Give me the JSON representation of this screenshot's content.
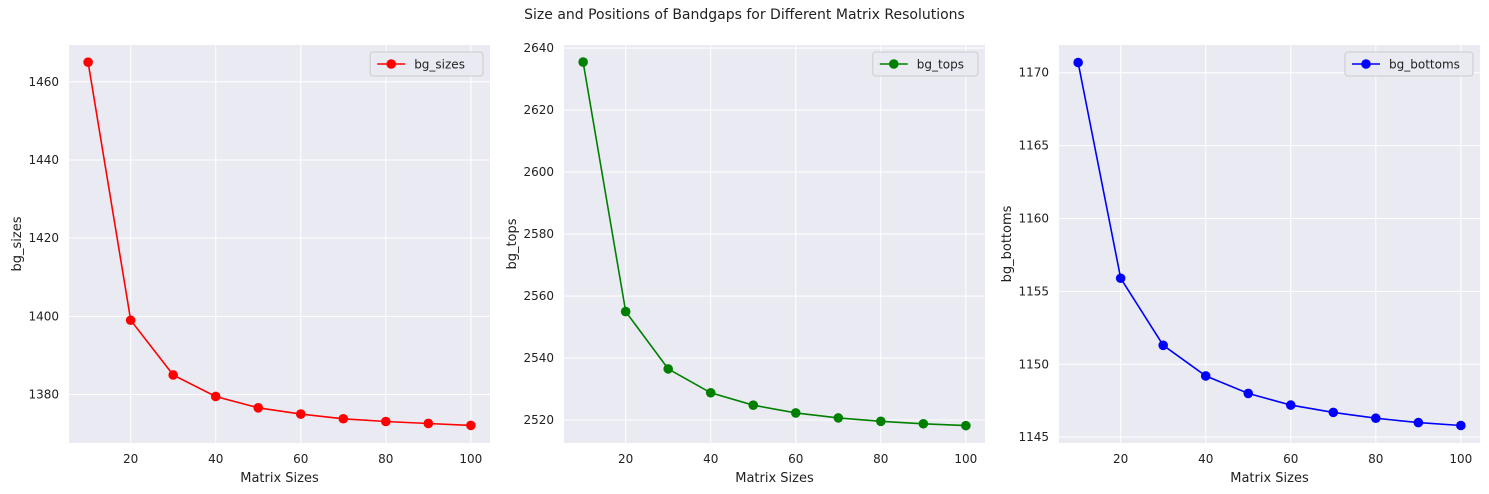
{
  "title": "Size and Positions of Bandgaps for Different Matrix Resolutions",
  "chart_data": [
    {
      "type": "line",
      "title": "",
      "xlabel": "Matrix Sizes",
      "ylabel": "bg_sizes",
      "x": [
        10,
        20,
        30,
        40,
        50,
        60,
        70,
        80,
        90,
        100
      ],
      "xticks": [
        20,
        40,
        60,
        80,
        100
      ],
      "yticks": [
        1380,
        1400,
        1420,
        1440,
        1460
      ],
      "xlim": [
        5.5,
        104.5
      ],
      "ylim": [
        1367.6,
        1469.4
      ],
      "grid": true,
      "legend": "top-right",
      "series": [
        {
          "name": "bg_sizes",
          "color": "#ff0000",
          "marker": "circle",
          "values": [
            1465,
            1399,
            1385,
            1379.5,
            1376.6,
            1375,
            1373.8,
            1373.1,
            1372.6,
            1372.1
          ]
        }
      ]
    },
    {
      "type": "line",
      "title": "",
      "xlabel": "Matrix Sizes",
      "ylabel": "bg_tops",
      "x": [
        10,
        20,
        30,
        40,
        50,
        60,
        70,
        80,
        90,
        100
      ],
      "xticks": [
        20,
        40,
        60,
        80,
        100
      ],
      "yticks": [
        2520,
        2540,
        2560,
        2580,
        2600,
        2620,
        2640
      ],
      "xlim": [
        5.5,
        104.5
      ],
      "ylim": [
        2512.6,
        2641.0
      ],
      "grid": true,
      "legend": "top-right",
      "series": [
        {
          "name": "bg_tops",
          "color": "#008000",
          "marker": "circle",
          "values": [
            2635.5,
            2555,
            2536.5,
            2528.8,
            2524.8,
            2522.3,
            2520.7,
            2519.6,
            2518.8,
            2518.2
          ]
        }
      ]
    },
    {
      "type": "line",
      "title": "",
      "xlabel": "Matrix Sizes",
      "ylabel": "bg_bottoms",
      "x": [
        10,
        20,
        30,
        40,
        50,
        60,
        70,
        80,
        90,
        100
      ],
      "xticks": [
        20,
        40,
        60,
        80,
        100
      ],
      "yticks": [
        1145,
        1150,
        1155,
        1160,
        1165,
        1170
      ],
      "xlim": [
        5.5,
        104.5
      ],
      "ylim": [
        1144.6,
        1171.9
      ],
      "grid": true,
      "legend": "top-right",
      "series": [
        {
          "name": "bg_bottoms",
          "color": "#0000ff",
          "marker": "circle",
          "values": [
            1170.7,
            1155.9,
            1151.3,
            1149.2,
            1148.0,
            1147.2,
            1146.7,
            1146.3,
            1146.0,
            1145.8
          ]
        }
      ]
    }
  ]
}
